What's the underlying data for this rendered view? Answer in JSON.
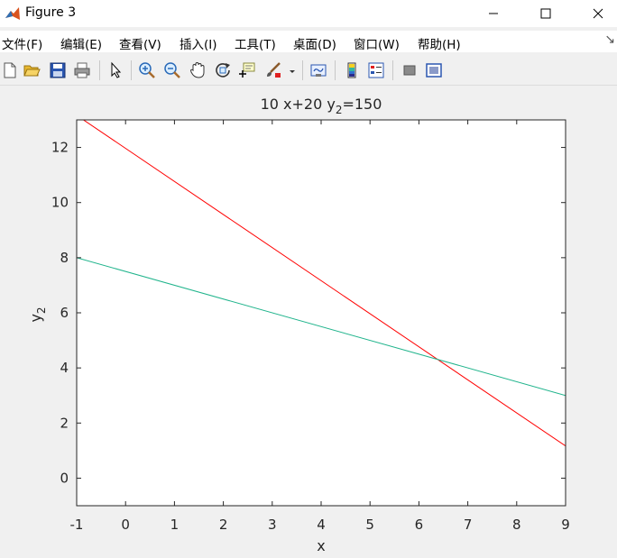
{
  "window": {
    "title": "Figure 3",
    "app_icon": "matlab-icon",
    "controls": [
      "minimize-icon",
      "maximize-icon",
      "close-icon"
    ]
  },
  "menu": {
    "items": [
      "文件(F)",
      "编辑(E)",
      "查看(V)",
      "插入(I)",
      "工具(T)",
      "桌面(D)",
      "窗口(W)",
      "帮助(H)"
    ]
  },
  "toolbar": {
    "icons": [
      "new-figure-icon",
      "open-file-icon",
      "save-icon",
      "print-icon",
      "edit-plot-arrow-icon",
      "zoom-in-icon",
      "zoom-out-icon",
      "pan-hand-icon",
      "rotate-3d-icon",
      "data-cursor-icon",
      "brush-icon",
      "link-plot-icon",
      "colorbar-icon",
      "legend-icon",
      "hide-plot-tools-icon",
      "show-plot-tools-icon"
    ]
  },
  "colors": {
    "red_line": "#ff0000",
    "teal_line": "#20b48c",
    "axes_bg": "#ffffff",
    "figure_bg": "#f0f0f0"
  },
  "chart_data": {
    "type": "line",
    "title_main": "10 x+20 y",
    "title_sub": "2",
    "title_tail": "=150",
    "xlabel": "x",
    "ylabel_main": "y",
    "ylabel_sub": "2",
    "xlim": [
      -1,
      9
    ],
    "ylim": [
      -1,
      13
    ],
    "xticks": [
      -1,
      0,
      1,
      2,
      3,
      4,
      5,
      6,
      7,
      8,
      9
    ],
    "yticks": [
      0,
      2,
      4,
      6,
      8,
      10,
      12
    ],
    "grid": false,
    "series": [
      {
        "color": "#ff0000",
        "x": [
          -1,
          9
        ],
        "y": [
          13.1667,
          1.1667
        ]
      },
      {
        "color": "#20b48c",
        "x": [
          -1,
          9
        ],
        "y": [
          8.0,
          3.0
        ]
      }
    ]
  }
}
